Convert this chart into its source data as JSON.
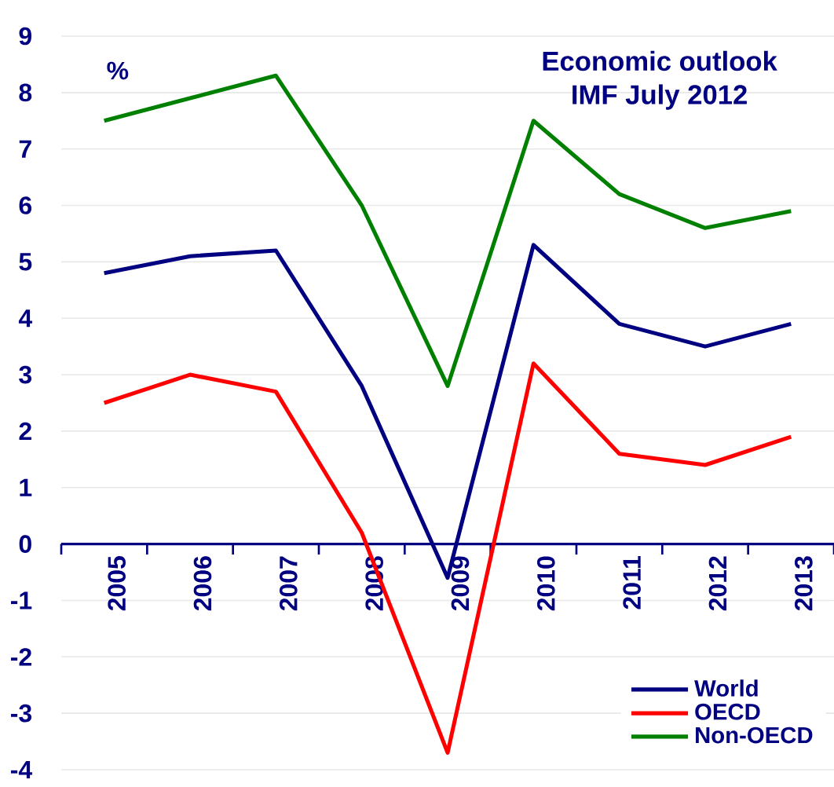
{
  "chart_data": {
    "type": "line",
    "title": "Economic outlook",
    "subtitle": "IMF July 2012",
    "ylabel": "%",
    "categories": [
      "2005",
      "2006",
      "2007",
      "2008",
      "2009",
      "2010",
      "2011",
      "2012",
      "2013"
    ],
    "series": [
      {
        "name": "World",
        "color": "#000080",
        "values": [
          4.8,
          5.1,
          5.2,
          2.8,
          -0.6,
          5.3,
          3.9,
          3.5,
          3.9
        ]
      },
      {
        "name": "OECD",
        "color": "#ff0000",
        "values": [
          2.5,
          3.0,
          2.7,
          0.2,
          -3.7,
          3.2,
          1.6,
          1.4,
          1.9
        ]
      },
      {
        "name": "Non-OECD",
        "color": "#008000",
        "values": [
          7.5,
          7.9,
          8.3,
          6.0,
          2.8,
          7.5,
          6.2,
          5.6,
          5.9
        ]
      }
    ],
    "ylim": [
      -4,
      9
    ],
    "yticks": [
      -4,
      -3,
      -2,
      -1,
      0,
      1,
      2,
      3,
      4,
      5,
      6,
      7,
      8,
      9
    ],
    "grid": "y",
    "legend": "bottom right",
    "marker": "none",
    "line_style": "solid"
  }
}
